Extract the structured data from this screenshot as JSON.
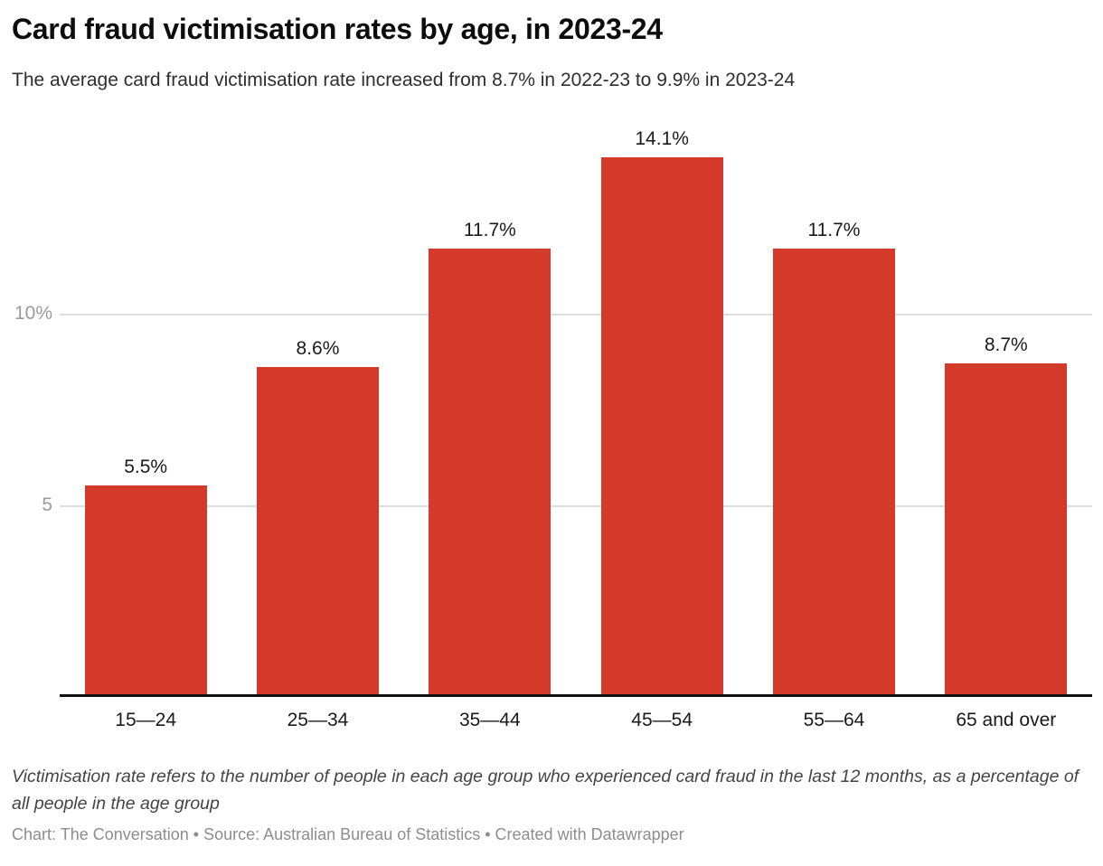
{
  "header": {
    "title": "Card fraud victimisation rates by age, in 2023-24",
    "subtitle": "The average card fraud victimisation rate increased from 8.7% in 2022-23 to 9.9% in 2023-24"
  },
  "chart_data": {
    "type": "bar",
    "title": "Card fraud victimisation rates by age, in 2023-24",
    "categories": [
      "15—24",
      "25—34",
      "35—44",
      "45—54",
      "55—64",
      "65 and over"
    ],
    "values": [
      5.5,
      8.6,
      11.7,
      14.1,
      11.7,
      8.7
    ],
    "value_labels": [
      "5.5%",
      "8.6%",
      "11.7%",
      "14.1%",
      "11.7%",
      "8.7%"
    ],
    "xlabel": "",
    "ylabel": "",
    "ylim": [
      0,
      15.4
    ],
    "yticks": [
      {
        "value": 5,
        "label": "5"
      },
      {
        "value": 10,
        "label": "10%"
      }
    ],
    "grid": true,
    "legend": "none",
    "bar_color": "#d43a2a"
  },
  "colors": {
    "bar": "#d43a2a",
    "gridline": "#dedede",
    "axis_line": "#111111",
    "ytick_label": "#9b9b9b",
    "text": "#1a1a1a",
    "note_text": "#444444",
    "attribution_text": "#8d8d8d",
    "background": "#ffffff"
  },
  "footer": {
    "note": "Victimisation rate refers to the number of people in each age group who experienced card fraud in the last 12 months, as a percentage of all people in the age group",
    "attribution": "Chart: The Conversation • Source: Australian Bureau of Statistics • Created with Datawrapper"
  }
}
